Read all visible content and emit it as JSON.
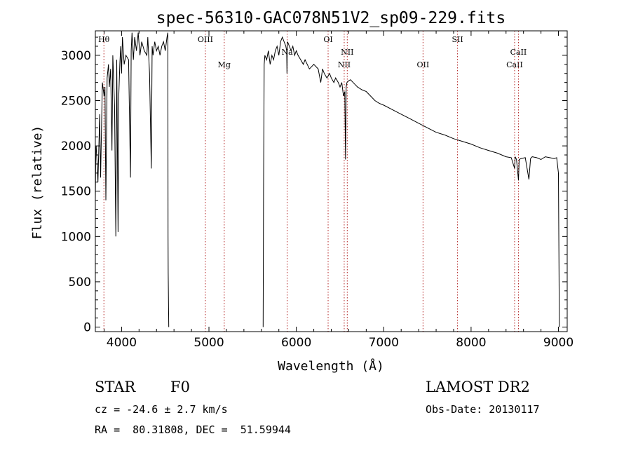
{
  "chart_data": {
    "type": "line",
    "title": "spec-56310-GAC078N51V2_sp09-229.fits",
    "xlabel": "Wavelength (Å)",
    "ylabel": "Flux (relative)",
    "xlim": [
      3700,
      9100
    ],
    "ylim": [
      -50,
      3270
    ],
    "xticks": [
      4000,
      5000,
      6000,
      7000,
      8000,
      9000
    ],
    "yticks": [
      0,
      500,
      1000,
      1500,
      2000,
      2500,
      3000
    ],
    "grid": false,
    "line_color": "#000000",
    "marker_color": "#b22222",
    "series": [
      {
        "x": [
          3700,
          3705,
          3710,
          3730,
          3750,
          3760,
          3780,
          3800,
          3810,
          3820,
          3835,
          3850,
          3860,
          3875,
          3890,
          3900,
          3920,
          3934,
          3945,
          3960,
          3968,
          3980,
          3990,
          4000,
          4010,
          4030,
          4050,
          4080,
          4102,
          4110,
          4120,
          4135,
          4150,
          4170,
          4190,
          4210,
          4230,
          4260,
          4290,
          4300,
          4320,
          4340,
          4350,
          4360,
          4380,
          4400,
          4420,
          4440,
          4460,
          4480,
          4500,
          4520,
          4530,
          4532,
          4534,
          4540
        ],
        "y": [
          1400,
          1950,
          2000,
          1600,
          2350,
          1650,
          2700,
          2550,
          2650,
          1400,
          2750,
          2900,
          2650,
          2850,
          1950,
          3000,
          2450,
          1000,
          2950,
          1050,
          2550,
          2900,
          3100,
          2800,
          3200,
          2900,
          3000,
          2950,
          1650,
          3050,
          3250,
          2950,
          3200,
          3050,
          3250,
          3000,
          3150,
          3050,
          3000,
          3200,
          2800,
          1750,
          3100,
          3000,
          3150,
          3050,
          3100,
          3000,
          3100,
          3150,
          3050,
          3200,
          3250,
          1000,
          600,
          0
        ]
      },
      {
        "x": [
          5620,
          5625,
          5632,
          5640,
          5660,
          5680,
          5700,
          5720,
          5740,
          5760,
          5780,
          5800,
          5820,
          5840,
          5860,
          5880,
          5890,
          5893,
          5896,
          5900,
          5920,
          5940,
          5960,
          5980,
          6000,
          6020,
          6050,
          6080,
          6100,
          6150,
          6200,
          6250,
          6280,
          6300,
          6320,
          6350,
          6380,
          6400,
          6430,
          6450,
          6480,
          6500,
          6520,
          6540,
          6555,
          6563,
          6570,
          6580,
          6600,
          6620,
          6650,
          6700,
          6750,
          6800,
          6850,
          6900,
          6950,
          7000,
          7100,
          7200,
          7300,
          7400,
          7500,
          7600,
          7700,
          7800,
          7900,
          8000,
          8100,
          8200,
          8300,
          8400,
          8460,
          8498,
          8505,
          8520,
          8542,
          8550,
          8570,
          8620,
          8662,
          8680,
          8700,
          8750,
          8800,
          8850,
          8900,
          8950,
          8980,
          9000,
          9010
        ],
        "y": [
          0,
          1500,
          2900,
          3000,
          2950,
          3050,
          2900,
          3000,
          2950,
          3050,
          3100,
          3000,
          3150,
          3200,
          3150,
          3100,
          3050,
          2800,
          3100,
          3150,
          3100,
          3050,
          3100,
          3000,
          3050,
          3000,
          2950,
          2900,
          2950,
          2850,
          2900,
          2850,
          2700,
          2850,
          2800,
          2750,
          2800,
          2750,
          2700,
          2750,
          2700,
          2650,
          2700,
          2550,
          2600,
          1850,
          2650,
          2700,
          2720,
          2730,
          2700,
          2650,
          2620,
          2600,
          2550,
          2500,
          2470,
          2450,
          2400,
          2350,
          2300,
          2250,
          2200,
          2150,
          2120,
          2080,
          2050,
          2020,
          1980,
          1950,
          1920,
          1880,
          1870,
          1750,
          1880,
          1850,
          1620,
          1850,
          1860,
          1870,
          1630,
          1860,
          1880,
          1870,
          1850,
          1880,
          1870,
          1860,
          1870,
          1700,
          0
        ]
      }
    ],
    "lines": [
      {
        "label": "Hθ",
        "x": 3798,
        "label_pos": "upper"
      },
      {
        "label": "OIII",
        "x": 4959,
        "label_pos": "upper"
      },
      {
        "label": "Mg",
        "x": 5175,
        "label_pos": "lower"
      },
      {
        "label": "Na",
        "x": 5895,
        "label_pos": "mid"
      },
      {
        "label": "OI",
        "x": 6364,
        "label_pos": "upper"
      },
      {
        "label": "NII",
        "x": 6548,
        "label_pos": "lower"
      },
      {
        "label": "NII",
        "x": 6583,
        "label_pos": "mid"
      },
      {
        "label": "OII",
        "x": 7450,
        "label_pos": "lower"
      },
      {
        "label": "SII",
        "x": 7845,
        "label_pos": "upper"
      },
      {
        "label": "CaII",
        "x": 8498,
        "label_pos": "lower"
      },
      {
        "label": "CaII",
        "x": 8542,
        "label_pos": "mid"
      }
    ]
  },
  "info": {
    "object_class": "STAR",
    "subclass": "F0",
    "survey": "LAMOST DR2",
    "cz": "cz = -24.6 ± 2.7 km/s",
    "obs_date": "Obs-Date: 20130117",
    "coords": "RA =  80.31808, DEC =  51.59944"
  }
}
